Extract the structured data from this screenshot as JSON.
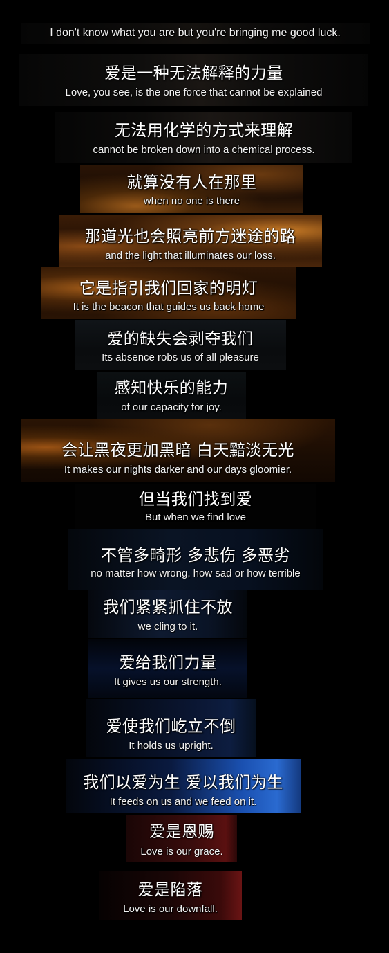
{
  "subtitles": [
    {
      "en": "I don't know what you are but you're bringing me good luck."
    },
    {
      "zh": "爱是一种无法解释的力量",
      "en": "Love, you see, is the one force that cannot be explained"
    },
    {
      "zh": "无法用化学的方式来理解",
      "en": "cannot be broken down into a chemical process."
    },
    {
      "zh": "就算没有人在那里",
      "en": "when no one is there"
    },
    {
      "zh": "那道光也会照亮前方迷途的路",
      "en": "and the light that illuminates our loss."
    },
    {
      "zh": "它是指引我们回家的明灯",
      "en": "It is the beacon that guides us back home"
    },
    {
      "zh": "爱的缺失会剥夺我们",
      "en": "Its absence robs us of all pleasure"
    },
    {
      "zh": "感知快乐的能力",
      "en": "of our capacity for joy."
    },
    {
      "zh": "会让黑夜更加黑暗  白天黯淡无光",
      "en": "It makes our nights darker and our days gloomier."
    },
    {
      "zh": "但当我们找到爱",
      "en": "But when we find love"
    },
    {
      "zh": "不管多畸形  多悲伤  多恶劣",
      "en": "no matter how wrong, how sad or how terrible"
    },
    {
      "zh": "我们紧紧抓住不放",
      "en": "we cling to it."
    },
    {
      "zh": "爱给我们力量",
      "en": "It gives us our strength."
    },
    {
      "zh": "爱使我们屹立不倒",
      "en": "It holds us upright."
    },
    {
      "zh": "我们以爱为生  爱以我们为生",
      "en": "It feeds on us and we feed on it."
    },
    {
      "zh": "爱是恩赐",
      "en": "Love is our grace."
    },
    {
      "zh": "爱是陷落",
      "en": "Love is our downfall."
    }
  ],
  "colors": {
    "page_background": "#000000",
    "text": "#ffffff"
  }
}
